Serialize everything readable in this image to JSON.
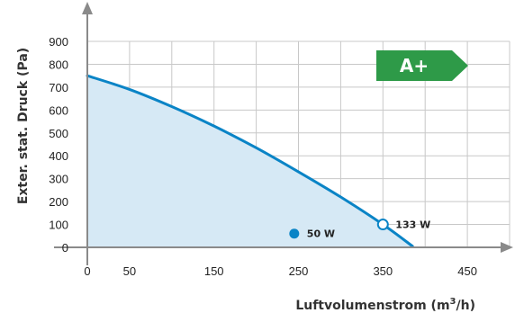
{
  "chart_data": {
    "type": "area",
    "title": "",
    "xlabel_main": "Luftvolumenstrom (m",
    "xlabel_sup": "3",
    "xlabel_end": "/h)",
    "ylabel": "Exter. stat. Druck (Pa)",
    "xlim": [
      0,
      500
    ],
    "ylim": [
      0,
      900
    ],
    "x_ticks": [
      0,
      50,
      150,
      250,
      350,
      450
    ],
    "x_gridlines": [
      0,
      50,
      100,
      150,
      200,
      250,
      300,
      350,
      400,
      450,
      500
    ],
    "y_ticks": [
      0,
      100,
      200,
      300,
      400,
      500,
      600,
      700,
      800,
      900
    ],
    "grid": true,
    "series": [
      {
        "x": [
          0,
          50,
          100,
          150,
          200,
          250,
          300,
          350,
          385
        ],
        "y": [
          750,
          690,
          615,
          530,
          435,
          330,
          220,
          100,
          5
        ]
      }
    ],
    "points": [
      {
        "x": 245,
        "y": 60,
        "label": "50 W",
        "style": "filled"
      },
      {
        "x": 350,
        "y": 100,
        "label": "133 W",
        "style": "open"
      }
    ],
    "badge": {
      "text": "A+",
      "color": "#2e9a48"
    },
    "colors": {
      "line": "#0a84c6",
      "fill": "#d6e9f5",
      "grid": "#c8c8c8",
      "axis": "#8a8a8a"
    }
  }
}
